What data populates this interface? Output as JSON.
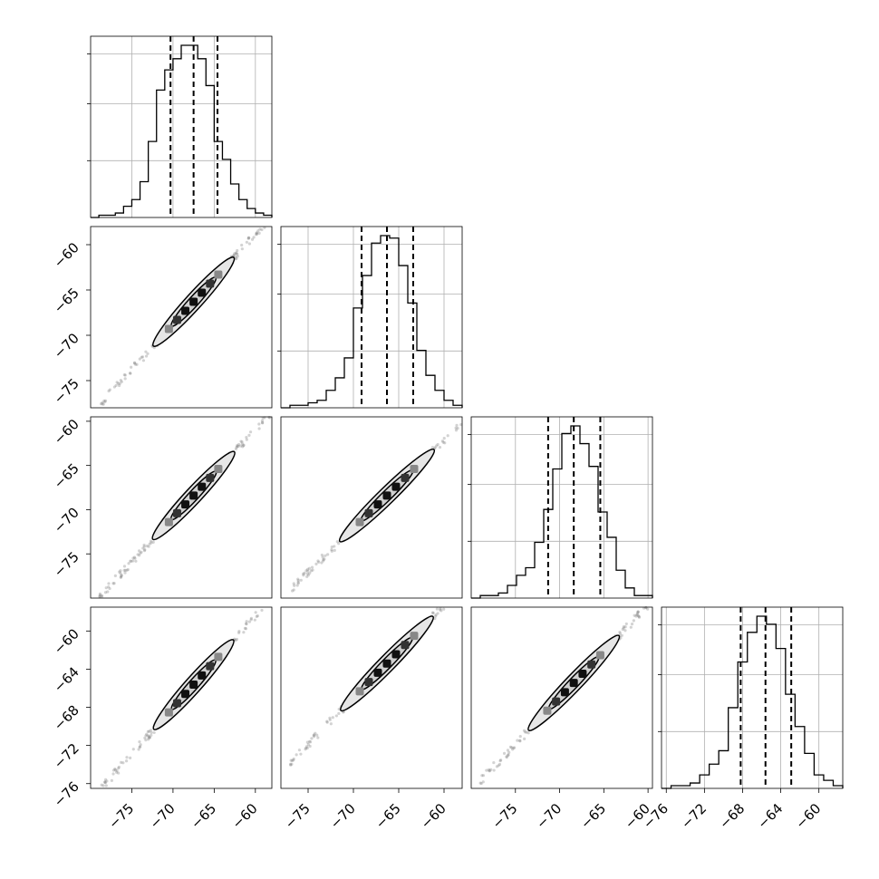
{
  "chart_data": {
    "type": "corner",
    "figure": "corner plot of 4 parameters",
    "grid": true,
    "colors": {
      "line": "#000000",
      "grid": "#b0b0b0",
      "points": "#808080",
      "contour_fill": "#e6e6e6"
    },
    "parameters": [
      {
        "range": [
          -80,
          -58
        ],
        "median": -67.5,
        "q16": -70.3,
        "q84": -64.6,
        "hist_counts": [
          0,
          1,
          1,
          2,
          5,
          8,
          16,
          34,
          57,
          66,
          71,
          77,
          77,
          71,
          59,
          34,
          26,
          15,
          8,
          4,
          2,
          1
        ]
      },
      {
        "range": [
          -78,
          -58
        ],
        "median": -66.3,
        "q16": -69.1,
        "q84": -63.4,
        "hist_counts": [
          0,
          1,
          1,
          2,
          3,
          7,
          12,
          20,
          40,
          53,
          66,
          69,
          68,
          57,
          42,
          23,
          13,
          7,
          3,
          1
        ]
      },
      {
        "range": [
          -80,
          -59.5
        ],
        "median": -68.4,
        "q16": -71.3,
        "q84": -65.4,
        "hist_counts": [
          0,
          1,
          1,
          2,
          5,
          9,
          12,
          22,
          35,
          51,
          65,
          68,
          61,
          52,
          34,
          24,
          11,
          4,
          1,
          1
        ]
      },
      {
        "range": [
          -76.5,
          -57.5
        ],
        "median": -65.6,
        "q16": -68.2,
        "q84": -62.9,
        "hist_counts": [
          0,
          1,
          1,
          2,
          5,
          9,
          14,
          30,
          47,
          58,
          64,
          61,
          52,
          35,
          23,
          13,
          5,
          3,
          1
        ]
      }
    ],
    "tick_labels": {
      "param1": [
        "−75",
        "−70",
        "−65",
        "−60"
      ],
      "param2": [
        "−75",
        "−70",
        "−65",
        "−60"
      ],
      "param3": [
        "−75",
        "−70",
        "−65",
        "−60"
      ],
      "param4": [
        "−76",
        "−72",
        "−68",
        "−64",
        "−60"
      ]
    },
    "tick_values": {
      "param1": [
        -75,
        -70,
        -65,
        -60
      ],
      "param2": [
        -75,
        -70,
        -65,
        -60
      ],
      "param3": [
        -75,
        -70,
        -65,
        -60
      ],
      "param4": [
        -76,
        -72,
        -68,
        -64,
        -60
      ]
    },
    "pairs": [
      {
        "row": 1,
        "col": 0,
        "slope": 1.0,
        "intercept": 1.2
      },
      {
        "row": 2,
        "col": 0,
        "slope": 1.0,
        "intercept": -0.9
      },
      {
        "row": 2,
        "col": 1,
        "slope": 1.0,
        "intercept": -2.1
      },
      {
        "row": 3,
        "col": 0,
        "slope": 0.97,
        "intercept": -0.15
      },
      {
        "row": 3,
        "col": 1,
        "slope": 0.97,
        "intercept": 0.9
      },
      {
        "row": 3,
        "col": 2,
        "slope": 0.97,
        "intercept": 0.9
      }
    ]
  }
}
